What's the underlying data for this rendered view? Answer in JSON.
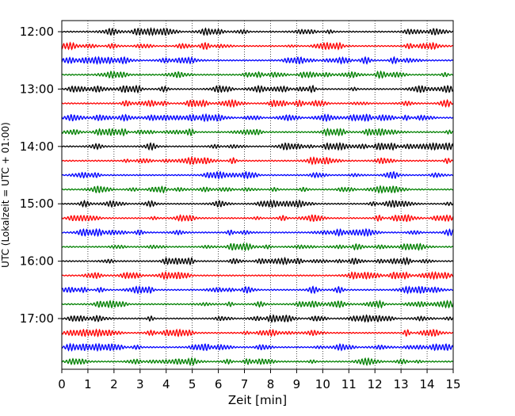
{
  "chart_data": {
    "type": "line",
    "title": "",
    "xlabel": "Zeit  [min]",
    "ylabel": "UTC (Lokalzeit = UTC + 01:00)",
    "xlim": [
      0,
      15
    ],
    "x_ticks": [
      "0",
      "1",
      "2",
      "3",
      "4",
      "5",
      "6",
      "7",
      "8",
      "9",
      "10",
      "11",
      "12",
      "13",
      "14",
      "15"
    ],
    "y_ticks": [
      "12:00",
      "13:00",
      "14:00",
      "15:00",
      "16:00",
      "17:00"
    ],
    "grid": "vertical-dotted",
    "row_start": "12:00",
    "row_end": "17:45",
    "minutes_per_row": 15,
    "trace_colors": [
      "#000000",
      "#ff0000",
      "#0000ff",
      "#008000"
    ]
  }
}
